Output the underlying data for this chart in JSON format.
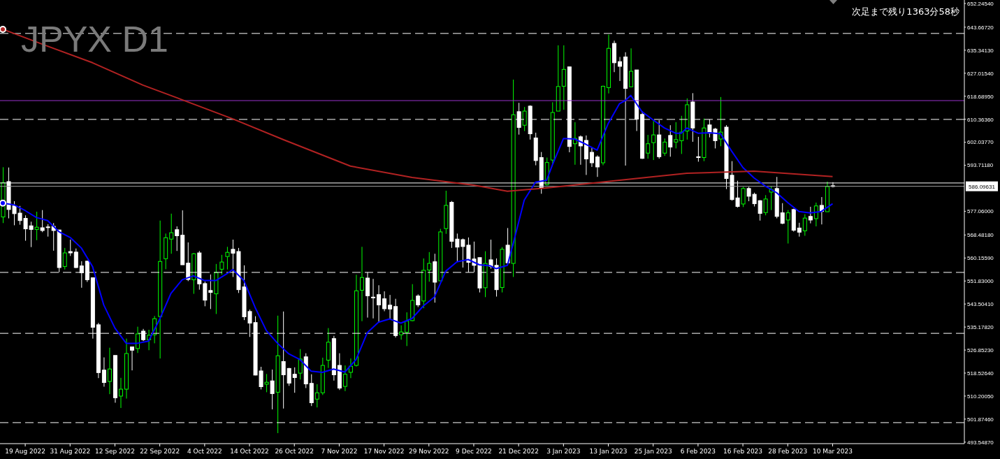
{
  "chart_data": {
    "type": "candlestick",
    "title": "JPYX D1",
    "annotations": [
      "次足まで残り1363分58秒"
    ],
    "categories": [
      null,
      null,
      null,
      null,
      "19 Aug 2022",
      null,
      null,
      null,
      null,
      null,
      null,
      null,
      "31 Aug 2022",
      null,
      null,
      null,
      null,
      null,
      null,
      null,
      "12 Sep 2022",
      null,
      null,
      null,
      null,
      null,
      null,
      null,
      "22 Sep 2022",
      null,
      null,
      null,
      null,
      null,
      null,
      null,
      "4 Oct 2022",
      null,
      null,
      null,
      null,
      null,
      null,
      null,
      "14 Oct 2022",
      null,
      null,
      null,
      null,
      null,
      null,
      null,
      "26 Oct 2022",
      null,
      null,
      null,
      null,
      null,
      null,
      null,
      "7 Nov 2022",
      null,
      null,
      null,
      null,
      null,
      null,
      null,
      "17 Nov 2022",
      null,
      null,
      null,
      null,
      null,
      null,
      null,
      "29 Nov 2022",
      null,
      null,
      null,
      null,
      null,
      null,
      null,
      "9 Dec 2022",
      null,
      null,
      null,
      null,
      null,
      null,
      null,
      "21 Dec 2022",
      null,
      null,
      null,
      null,
      null,
      null,
      null,
      "3 Jan 2023",
      null,
      null,
      null,
      null,
      null,
      null,
      null,
      "13 Jan 2023",
      null,
      null,
      null,
      null,
      null,
      null,
      null,
      "25 Jan 2023",
      null,
      null,
      null,
      null,
      null,
      null,
      null,
      "6 Feb 2023",
      null,
      null,
      null,
      null,
      null,
      null,
      null,
      "16 Feb 2023",
      null,
      null,
      null,
      null,
      null,
      null,
      null,
      "28 Feb 2023",
      null,
      null,
      null,
      null,
      null,
      null,
      null,
      "10 Mar 2023",
      null,
      null,
      null,
      null,
      null,
      null,
      null,
      null,
      null,
      null,
      null,
      null,
      null,
      null,
      null,
      null,
      null,
      null,
      null,
      null,
      null,
      null,
      null
    ],
    "ohlc": [
      [
        575.0,
        593.0,
        572.8,
        587.4
      ],
      [
        587.8,
        592.9,
        574.5,
        577.7
      ],
      [
        579.0,
        580.7,
        572.0,
        576.2
      ],
      [
        576.4,
        579.0,
        572.2,
        573.7
      ],
      [
        574.5,
        575.6,
        566.4,
        570.7
      ],
      [
        571.8,
        573.3,
        564.1,
        570.5
      ],
      [
        570.5,
        576.9,
        566.6,
        571.3
      ],
      [
        571.1,
        577.5,
        569.5,
        570.1
      ],
      [
        571.4,
        572.4,
        567.9,
        571.2
      ],
      [
        571.6,
        572.8,
        562.8,
        570.1
      ],
      [
        570.3,
        570.3,
        555.0,
        556.7
      ],
      [
        557.1,
        563.8,
        556.0,
        562.0
      ],
      [
        562.5,
        566.8,
        560.9,
        562.0
      ],
      [
        562.3,
        563.6,
        556.5,
        556.7
      ],
      [
        557.3,
        559.0,
        549.4,
        554.8
      ],
      [
        559.0,
        559.2,
        551.5,
        552.3
      ],
      [
        553.0,
        553.0,
        531.0,
        535.1
      ],
      [
        536.0,
        536.7,
        516.7,
        518.7
      ],
      [
        519.6,
        524.2,
        513.6,
        515.1
      ],
      [
        515.5,
        527.7,
        510.9,
        520.0
      ],
      [
        524.9,
        524.9,
        507.8,
        509.6
      ],
      [
        510.2,
        516.8,
        505.9,
        512.7
      ],
      [
        512.7,
        531.0,
        509.3,
        525.6
      ],
      [
        528.0,
        528.0,
        519.5,
        526.8
      ],
      [
        527.4,
        535.3,
        525.8,
        532.7
      ],
      [
        533.7,
        534.5,
        530.1,
        530.6
      ],
      [
        530.6,
        534.2,
        526.8,
        532.2
      ],
      [
        532.4,
        539.2,
        529.3,
        538.2
      ],
      [
        539.0,
        573.7,
        523.8,
        558.9
      ],
      [
        559.9,
        569.0,
        556.1,
        567.5
      ],
      [
        567.0,
        576.2,
        561.7,
        569.3
      ],
      [
        570.4,
        571.6,
        562.7,
        568.2
      ],
      [
        568.4,
        577.4,
        557.7,
        557.7
      ],
      [
        558.3,
        565.8,
        551.8,
        552.4
      ],
      [
        552.3,
        562.0,
        547.2,
        561.7
      ],
      [
        562.0,
        562.7,
        548.7,
        550.8
      ],
      [
        550.9,
        551.6,
        542.7,
        544.9
      ],
      [
        548.4,
        554.2,
        541.7,
        547.7
      ],
      [
        547.2,
        558.0,
        539.9,
        554.9
      ],
      [
        556.1,
        561.3,
        554.1,
        558.7
      ],
      [
        560.7,
        564.2,
        556.0,
        562.2
      ],
      [
        563.3,
        566.8,
        553.3,
        561.9
      ],
      [
        562.5,
        563.8,
        547.5,
        548.7
      ],
      [
        549.7,
        557.5,
        537.7,
        538.9
      ],
      [
        540.8,
        541.5,
        531.6,
        536.6
      ],
      [
        536.8,
        539.1,
        517.7,
        517.8
      ],
      [
        519.3,
        520.8,
        512.6,
        513.6
      ],
      [
        514.5,
        518.2,
        511.6,
        515.2
      ],
      [
        515.7,
        519.8,
        505.4,
        511.1
      ],
      [
        511.6,
        539.3,
        496.8,
        524.8
      ],
      [
        522.7,
        540.8,
        505.7,
        517.9
      ],
      [
        520.2,
        520.4,
        513.9,
        514.9
      ],
      [
        518.1,
        520.6,
        511.4,
        516.9
      ],
      [
        518.5,
        527.2,
        516.2,
        523.6
      ],
      [
        524.4,
        525.7,
        513.1,
        514.6
      ],
      [
        514.8,
        518.1,
        506.6,
        507.8
      ],
      [
        509.1,
        514.5,
        506.1,
        511.4
      ],
      [
        511.4,
        524.1,
        510.6,
        521.3
      ],
      [
        523.2,
        534.8,
        520.4,
        529.7
      ],
      [
        531.0,
        532.0,
        515.8,
        517.9
      ],
      [
        521.3,
        525.7,
        512.4,
        513.1
      ],
      [
        513.7,
        521.3,
        512.0,
        518.1
      ],
      [
        518.8,
        523.8,
        516.7,
        521.0
      ],
      [
        521.3,
        554.1,
        520.9,
        548.3
      ],
      [
        548.5,
        564.2,
        537.3,
        553.1
      ],
      [
        552.9,
        555.0,
        538.6,
        546.5
      ],
      [
        546.0,
        552.6,
        538.3,
        545.8
      ],
      [
        546.9,
        550.3,
        537.0,
        543.2
      ],
      [
        545.4,
        548.1,
        540.9,
        541.8
      ],
      [
        543.1,
        546.8,
        538.1,
        541.7
      ],
      [
        542.6,
        545.4,
        531.4,
        532.1
      ],
      [
        532.4,
        535.8,
        530.6,
        533.4
      ],
      [
        533.3,
        540.5,
        528.3,
        537.3
      ],
      [
        537.5,
        550.7,
        537.3,
        544.8
      ],
      [
        546.4,
        547.0,
        542.4,
        543.2
      ],
      [
        544.6,
        560.0,
        542.0,
        555.7
      ],
      [
        555.8,
        562.3,
        551.6,
        558.2
      ],
      [
        558.8,
        561.7,
        544.0,
        551.4
      ],
      [
        551.9,
        570.7,
        551.9,
        569.6
      ],
      [
        570.8,
        584.5,
        568.9,
        579.2
      ],
      [
        580.3,
        580.8,
        563.8,
        566.2
      ],
      [
        567.0,
        569.0,
        559.0,
        564.1
      ],
      [
        566.8,
        567.2,
        556.7,
        564.3
      ],
      [
        564.8,
        567.6,
        555.0,
        558.6
      ],
      [
        559.8,
        566.1,
        555.0,
        557.5
      ],
      [
        560.3,
        560.3,
        547.7,
        549.3
      ],
      [
        549.4,
        562.6,
        546.0,
        558.2
      ],
      [
        559.5,
        566.8,
        556.3,
        557.1
      ],
      [
        557.5,
        560.0,
        546.2,
        548.7
      ],
      [
        549.5,
        564.1,
        547.7,
        563.3
      ],
      [
        564.8,
        571.0,
        557.8,
        558.4
      ],
      [
        558.2,
        624.7,
        553.3,
        612.0
      ],
      [
        613.1,
        616.3,
        604.8,
        607.4
      ],
      [
        608.2,
        614.8,
        606.1,
        613.3
      ],
      [
        615.1,
        615.4,
        603.0,
        605.1
      ],
      [
        603.6,
        605.5,
        593.7,
        595.4
      ],
      [
        596.5,
        598.5,
        583.4,
        585.6
      ],
      [
        586.7,
        596.5,
        586.4,
        594.7
      ],
      [
        595.6,
        616.5,
        594.1,
        612.8
      ],
      [
        613.3,
        637.1,
        613.3,
        622.2
      ],
      [
        622.3,
        637.1,
        613.8,
        628.4
      ],
      [
        629.3,
        629.3,
        598.4,
        600.5
      ],
      [
        601.5,
        609.3,
        593.9,
        603.4
      ],
      [
        604.0,
        604.5,
        593.9,
        600.7
      ],
      [
        602.7,
        604.5,
        590.2,
        596.0
      ],
      [
        598.4,
        600.0,
        593.1,
        594.6
      ],
      [
        596.7,
        597.3,
        589.5,
        593.1
      ],
      [
        594.6,
        622.5,
        593.7,
        622.3
      ],
      [
        621.8,
        641.0,
        619.7,
        636.0
      ],
      [
        637.8,
        638.8,
        627.4,
        630.8
      ],
      [
        631.2,
        632.9,
        624.2,
        629.5
      ],
      [
        632.9,
        634.6,
        593.6,
        621.5
      ],
      [
        622.1,
        636.0,
        621.9,
        627.7
      ],
      [
        628.2,
        628.2,
        606.1,
        610.4
      ],
      [
        612.1,
        613.3,
        596.0,
        596.2
      ],
      [
        598.1,
        604.7,
        596.1,
        601.5
      ],
      [
        601.9,
        609.7,
        595.6,
        604.7
      ],
      [
        604.7,
        610.0,
        596.1,
        596.8
      ],
      [
        598.1,
        603.4,
        597.1,
        602.1
      ],
      [
        604.5,
        608.2,
        596.8,
        600.3
      ],
      [
        602.1,
        609.3,
        599.8,
        603.0
      ],
      [
        602.6,
        611.6,
        597.8,
        605.7
      ],
      [
        606.1,
        617.9,
        603.0,
        615.6
      ],
      [
        616.6,
        619.8,
        602.2,
        607.2
      ],
      [
        596.8,
        604.0,
        595.0,
        596.5
      ],
      [
        596.5,
        610.6,
        595.2,
        607.2
      ],
      [
        608.3,
        610.3,
        603.8,
        605.3
      ],
      [
        606.8,
        607.2,
        599.8,
        602.6
      ],
      [
        603.2,
        618.4,
        600.6,
        605.7
      ],
      [
        607.5,
        608.2,
        585.1,
        588.9
      ],
      [
        590.1,
        595.2,
        580.9,
        581.3
      ],
      [
        581.9,
        588.1,
        578.4,
        578.8
      ],
      [
        579.7,
        585.9,
        578.6,
        585.3
      ],
      [
        585.3,
        585.9,
        580.7,
        582.5
      ],
      [
        583.2,
        583.8,
        578.8,
        579.8
      ],
      [
        580.9,
        581.1,
        573.7,
        576.3
      ],
      [
        576.6,
        582.9,
        575.6,
        581.5
      ],
      [
        584.0,
        586.1,
        577.5,
        584.9
      ],
      [
        585.3,
        589.5,
        574.5,
        575.2
      ],
      [
        576.5,
        580.0,
        572.4,
        572.7
      ],
      [
        573.9,
        577.5,
        565.4,
        576.5
      ],
      [
        577.7,
        578.0,
        569.7,
        570.2
      ],
      [
        571.0,
        572.9,
        567.9,
        569.5
      ],
      [
        570.0,
        576.0,
        568.2,
        574.6
      ],
      [
        575.2,
        578.7,
        572.7,
        573.9
      ],
      [
        574.4,
        580.2,
        571.6,
        579.0
      ],
      [
        579.2,
        582.2,
        572.3,
        577.0
      ],
      [
        576.9,
        587.8,
        576.9,
        586.0
      ],
      [
        586.3,
        587.6,
        585.7,
        586.1
      ],
      null,
      null,
      null,
      null,
      null,
      null,
      null,
      null,
      null,
      null,
      null,
      null,
      null,
      null,
      null,
      null,
      null,
      null,
      null,
      null,
      null,
      null,
      null
    ],
    "colors": [
      "#00ff00",
      "#ffffff",
      "#ffffff",
      "#ffffff",
      "#ffffff",
      "#ffffff",
      "#00ff00",
      "#ffffff",
      "#ffffff",
      "#ffffff",
      "#ffffff",
      "#00ff00",
      "#ffffff",
      "#ffffff",
      "#ffffff",
      "#ffffff",
      "#ffffff",
      "#ffffff",
      "#ffffff",
      "#00ff00",
      "#ffffff",
      "#00ff00",
      "#00ff00",
      "#ffffff",
      "#00ff00",
      "#ffffff",
      "#00ff00",
      "#00ff00",
      "#00ff00",
      "#00ff00",
      "#00ff00",
      "#ffffff",
      "#ffffff",
      "#ffffff",
      "#00ff00",
      "#ffffff",
      "#ffffff",
      "#ffffff",
      "#00ff00",
      "#00ff00",
      "#00ff00",
      "#ffffff",
      "#ffffff",
      "#ffffff",
      "#ffffff",
      "#ffffff",
      "#ffffff",
      "#00ff00",
      "#ffffff",
      "#00ff00",
      "#ffffff",
      "#ffffff",
      "#ffffff",
      "#00ff00",
      "#ffffff",
      "#ffffff",
      "#00ff00",
      "#00ff00",
      "#00ff00",
      "#ffffff",
      "#ffffff",
      "#00ff00",
      "#00ff00",
      "#00ff00",
      "#00ff00",
      "#ffffff",
      "#ffffff",
      "#ffffff",
      "#ffffff",
      "#ffffff",
      "#ffffff",
      "#00ff00",
      "#00ff00",
      "#00ff00",
      "#ffffff",
      "#00ff00",
      "#00ff00",
      "#ffffff",
      "#00ff00",
      "#00ff00",
      "#ffffff",
      "#ffffff",
      "#ffffff",
      "#ffffff",
      "#ffffff",
      "#ffffff",
      "#00ff00",
      "#ffffff",
      "#ffffff",
      "#00ff00",
      "#ffffff",
      "#00ff00",
      "#ffffff",
      "#00ff00",
      "#ffffff",
      "#ffffff",
      "#ffffff",
      "#00ff00",
      "#00ff00",
      "#00ff00",
      "#00ff00",
      "#ffffff",
      "#00ff00",
      "#ffffff",
      "#ffffff",
      "#ffffff",
      "#ffffff",
      "#00ff00",
      "#00ff00",
      "#ffffff",
      "#ffffff",
      "#ffffff",
      "#00ff00",
      "#ffffff",
      "#ffffff",
      "#00ff00",
      "#00ff00",
      "#ffffff",
      "#00ff00",
      "#ffffff",
      "#00ff00",
      "#00ff00",
      "#00ff00",
      "#ffffff",
      "#ffffff",
      "#00ff00",
      "#ffffff",
      "#ffffff",
      "#00ff00",
      "#ffffff",
      "#ffffff",
      "#ffffff",
      "#00ff00",
      "#ffffff",
      "#ffffff",
      "#ffffff",
      "#00ff00",
      "#00ff00",
      "#ffffff",
      "#ffffff",
      "#00ff00",
      "#ffffff",
      "#ffffff",
      "#00ff00",
      "#ffffff",
      "#00ff00",
      "#ffffff",
      "#00ff00",
      "#ffffff",
      null,
      null,
      null,
      null,
      null,
      null,
      null,
      null,
      null,
      null,
      null,
      null,
      null,
      null,
      null,
      null,
      null,
      null,
      null,
      null,
      null,
      null,
      null
    ],
    "series": [
      {
        "type": "line",
        "color": "#0000ff",
        "values": [
          580.0,
          null,
          579.4,
          null,
          577.3,
          null,
          574.8,
          null,
          573.7,
          null,
          569.7,
          null,
          567.6,
          null,
          563.8,
          null,
          557.1,
          null,
          543.2,
          null,
          534.8,
          null,
          529.3,
          null,
          529.3,
          null,
          530.1,
          null,
          538.1,
          null,
          547.4,
          null,
          552.3,
          null,
          553.7,
          null,
          552.0,
          null,
          552.0,
          null,
          554.5,
          556.0,
          null,
          552.0,
          null,
          542.3,
          null,
          533.9,
          null,
          529.3,
          null,
          525.5,
          null,
          523.4,
          null,
          519.2,
          null,
          518.8,
          null,
          520.0,
          null,
          518.9,
          null,
          523.4,
          null,
          533.1,
          null,
          536.9,
          null,
          538.1,
          null,
          536.6,
          null,
          538.3,
          null,
          542.8,
          null,
          546.1,
          null,
          555.4,
          null,
          558.8,
          null,
          559.6,
          null,
          557.7,
          null,
          557.3,
          556.3,
          null,
          557.5,
          565.1,
          null,
          581.1,
          null,
          587.6,
          null,
          588.3,
          593.7,
          null,
          603.4,
          null,
          603.2,
          null,
          601.3,
          null,
          599.2,
          null,
          608.9,
          null,
          616.0,
          617.1,
          619.0,
          null,
          613.1,
          null,
          610.1,
          null,
          607.2,
          null,
          605.3,
          605.3,
          607.2,
          null,
          605.3,
          null,
          605.5,
          null,
          605.1,
          null,
          598.8,
          null,
          592.9,
          null,
          589.1,
          null,
          586.2,
          null,
          583.8,
          null,
          580.2,
          null,
          577.0,
          null,
          576.5,
          null,
          577.0,
          null,
          579.8,
          null,
          null,
          null,
          null,
          null,
          null,
          null,
          null,
          null,
          null,
          null,
          null,
          null,
          null,
          null,
          null,
          null,
          null,
          null,
          null,
          null,
          null,
          null
        ]
      },
      {
        "type": "line",
        "color": "#b22222",
        "values": [
          642.9,
          null,
          null,
          null,
          null,
          null,
          null,
          null,
          636.8,
          null,
          null,
          null,
          null,
          null,
          null,
          null,
          630.8,
          null,
          null,
          null,
          null,
          null,
          null,
          null,
          null,
          622.7,
          null,
          null,
          null,
          null,
          null,
          null,
          617.4,
          null,
          null,
          null,
          null,
          null,
          null,
          null,
          null,
          610.5,
          null,
          null,
          null,
          null,
          null,
          null,
          null,
          null,
          603.0,
          null,
          null,
          null,
          null,
          null,
          null,
          null,
          null,
          null,
          null,
          null,
          593.4,
          null,
          null,
          null,
          null,
          null,
          null,
          null,
          null,
          null,
          null,
          589.3,
          null,
          null,
          null,
          null,
          null,
          null,
          null,
          null,
          null,
          null,
          586.5,
          null,
          null,
          null,
          null,
          null,
          584.3,
          null,
          null,
          null,
          null,
          null,
          null,
          585.5,
          null,
          null,
          null,
          null,
          null,
          null,
          null,
          null,
          null,
          null,
          null,
          null,
          588.3,
          null,
          null,
          null,
          null,
          null,
          null,
          null,
          null,
          null,
          null,
          null,
          590.8,
          null,
          null,
          null,
          null,
          null,
          null,
          null,
          null,
          null,
          null,
          null,
          591.6,
          null,
          null,
          null,
          null,
          null,
          null,
          null,
          null,
          null,
          null,
          null,
          null,
          null,
          589.6,
          null,
          null,
          null,
          null,
          null,
          null,
          null,
          null,
          null,
          null,
          null,
          null,
          null,
          null,
          null,
          null,
          null,
          null,
          null,
          null,
          null,
          null,
          null
        ]
      }
    ],
    "ylim": [
      493,
      653.5
    ],
    "yticks": [
      {
        "value": 652.2454,
        "label": "652.24540"
      },
      {
        "value": 643.6672,
        "label": "643.66720"
      },
      {
        "value": 635.3413,
        "label": "635.34130"
      },
      {
        "value": 627.0154,
        "label": "627.01540"
      },
      {
        "value": 618.6895,
        "label": "618.68950"
      },
      {
        "value": 610.3636,
        "label": "610.36360"
      },
      {
        "value": 602.0377,
        "label": "602.03770"
      },
      {
        "value": 593.7118,
        "label": "593.71180"
      },
      {
        "value": 577.06,
        "label": "577.06000"
      },
      {
        "value": 568.4818,
        "label": "568.48180"
      },
      {
        "value": 560.1559,
        "label": "560.15590"
      },
      {
        "value": 551.83,
        "label": "551.83000"
      },
      {
        "value": 543.5041,
        "label": "543.50410"
      },
      {
        "value": 535.1782,
        "label": "535.17820"
      },
      {
        "value": 526.8523,
        "label": "526.85230"
      },
      {
        "value": 518.5264,
        "label": "518.52640"
      },
      {
        "value": 510.2005,
        "label": "510.20050"
      },
      {
        "value": 501.8746,
        "label": "501.87460"
      },
      {
        "value": 493.5487,
        "label": "493.54870"
      }
    ],
    "ref_lines": [
      {
        "axis": "y",
        "value": 586.09631,
        "label": "586.09631",
        "color": "#a0a0a0"
      },
      {
        "axis": "y",
        "value": 617.1,
        "color": "#9932cc"
      },
      {
        "axis": "y",
        "value": 641.4,
        "color": "#ffffff",
        "line_style": "dashed"
      },
      {
        "axis": "y",
        "value": 610.3,
        "color": "#ffffff",
        "line_style": "dashed"
      },
      {
        "axis": "y",
        "value": 587.3,
        "color": "#ffffff",
        "line_style": "solid"
      },
      {
        "axis": "y",
        "value": 554.95,
        "color": "#ffffff",
        "line_style": "dashed"
      },
      {
        "axis": "y",
        "value": 532.9,
        "color": "#ffffff",
        "line_style": "dashed"
      },
      {
        "axis": "y",
        "value": 500.6,
        "color": "#ffffff",
        "line_style": "dashed"
      }
    ],
    "tick_labels": "xy"
  }
}
